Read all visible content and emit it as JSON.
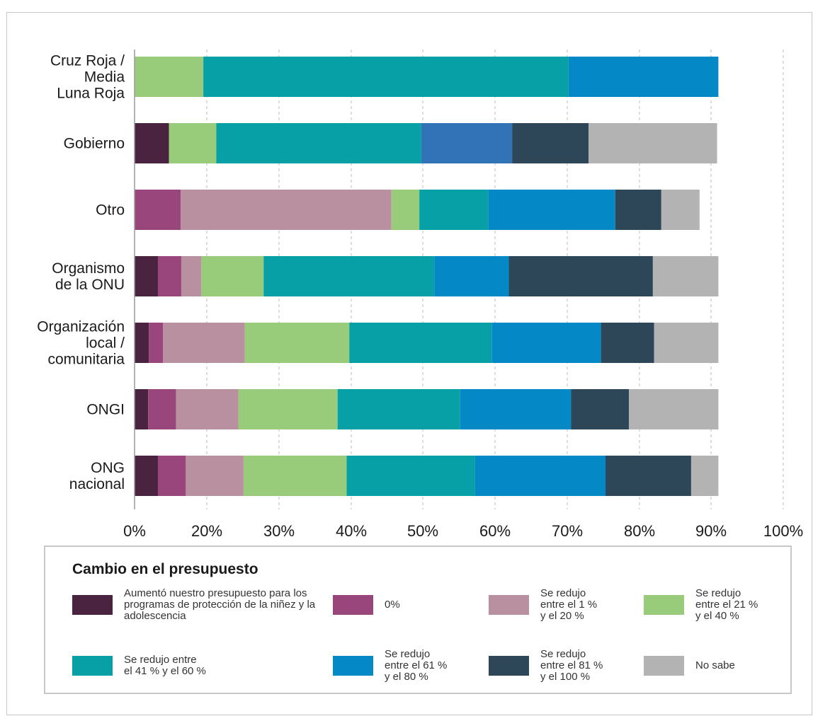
{
  "chart_data": {
    "type": "bar",
    "orientation": "horizontal",
    "stacked": true,
    "categories": [
      "Cruz Roja /\nMedia\nLuna Roja",
      "Gobierno",
      "Otro",
      "Organismo\nde la ONU",
      "Organización\nlocal /\ncomunitaria",
      "ONGI",
      "ONG\nnacional"
    ],
    "series": [
      {
        "name": "Aumentó nuestro presupuesto para los programas de protección de la niñez y la adolescencia",
        "color": "#4a2340",
        "values": [
          0,
          5.3,
          0,
          3.6,
          2.2,
          2.1,
          3.6
        ]
      },
      {
        "name": "0%",
        "color": "#98467b",
        "values": [
          0,
          0,
          7.1,
          3.6,
          2.2,
          4.3,
          4.3
        ]
      },
      {
        "name": "Se redujo\nentre el 1 %\ny el 20 %",
        "color": "#b8909f",
        "values": [
          0,
          0,
          32.5,
          3.1,
          12.6,
          9.6,
          8.9
        ]
      },
      {
        "name": "Se redujo\nentre el 21 %\ny el 40 %",
        "color": "#99cc7a",
        "values": [
          10.6,
          7.3,
          4.3,
          9.6,
          16.1,
          15.3,
          15.9
        ]
      },
      {
        "name": "Se redujo entre\nel 41 % y el 60 %",
        "color": "#06a0a6",
        "values": [
          56.3,
          31.6,
          10.6,
          26.3,
          22.0,
          18.9,
          19.8
        ]
      },
      {
        "name": "Se redujo\nentre el 61 %\n y el 80 %",
        "color": "#0589c6",
        "values": [
          23.1,
          0,
          19.6,
          11.5,
          16.8,
          17.1,
          20.1
        ]
      },
      {
        "name": "Se redujo\nentre el 81 %\ny el 100 %",
        "color": "#2d4759",
        "values": [
          0,
          11.8,
          7.1,
          22.2,
          8.2,
          8.9,
          13.2
        ]
      },
      {
        "name": "No sabe",
        "color": "#b3b3b3",
        "values": [
          0,
          19.8,
          5.9,
          10.1,
          9.9,
          13.8,
          4.2
        ]
      }
    ],
    "extra_segments": [
      {
        "category": "Gobierno",
        "color": "#3173b6",
        "value": 14.0,
        "after_series": "Se redujo entre\nel 41 % y el 60 %"
      }
    ],
    "xlim": [
      0,
      90
    ],
    "x_tick_labels": [
      "0%",
      "20%",
      "30%",
      "40%",
      "50%",
      "60%",
      "70%",
      "80%",
      "90%",
      "100%"
    ],
    "grid": "vertical dashed",
    "legend": {
      "title": "Cambio en el presupuesto",
      "placement": "bottom"
    }
  }
}
